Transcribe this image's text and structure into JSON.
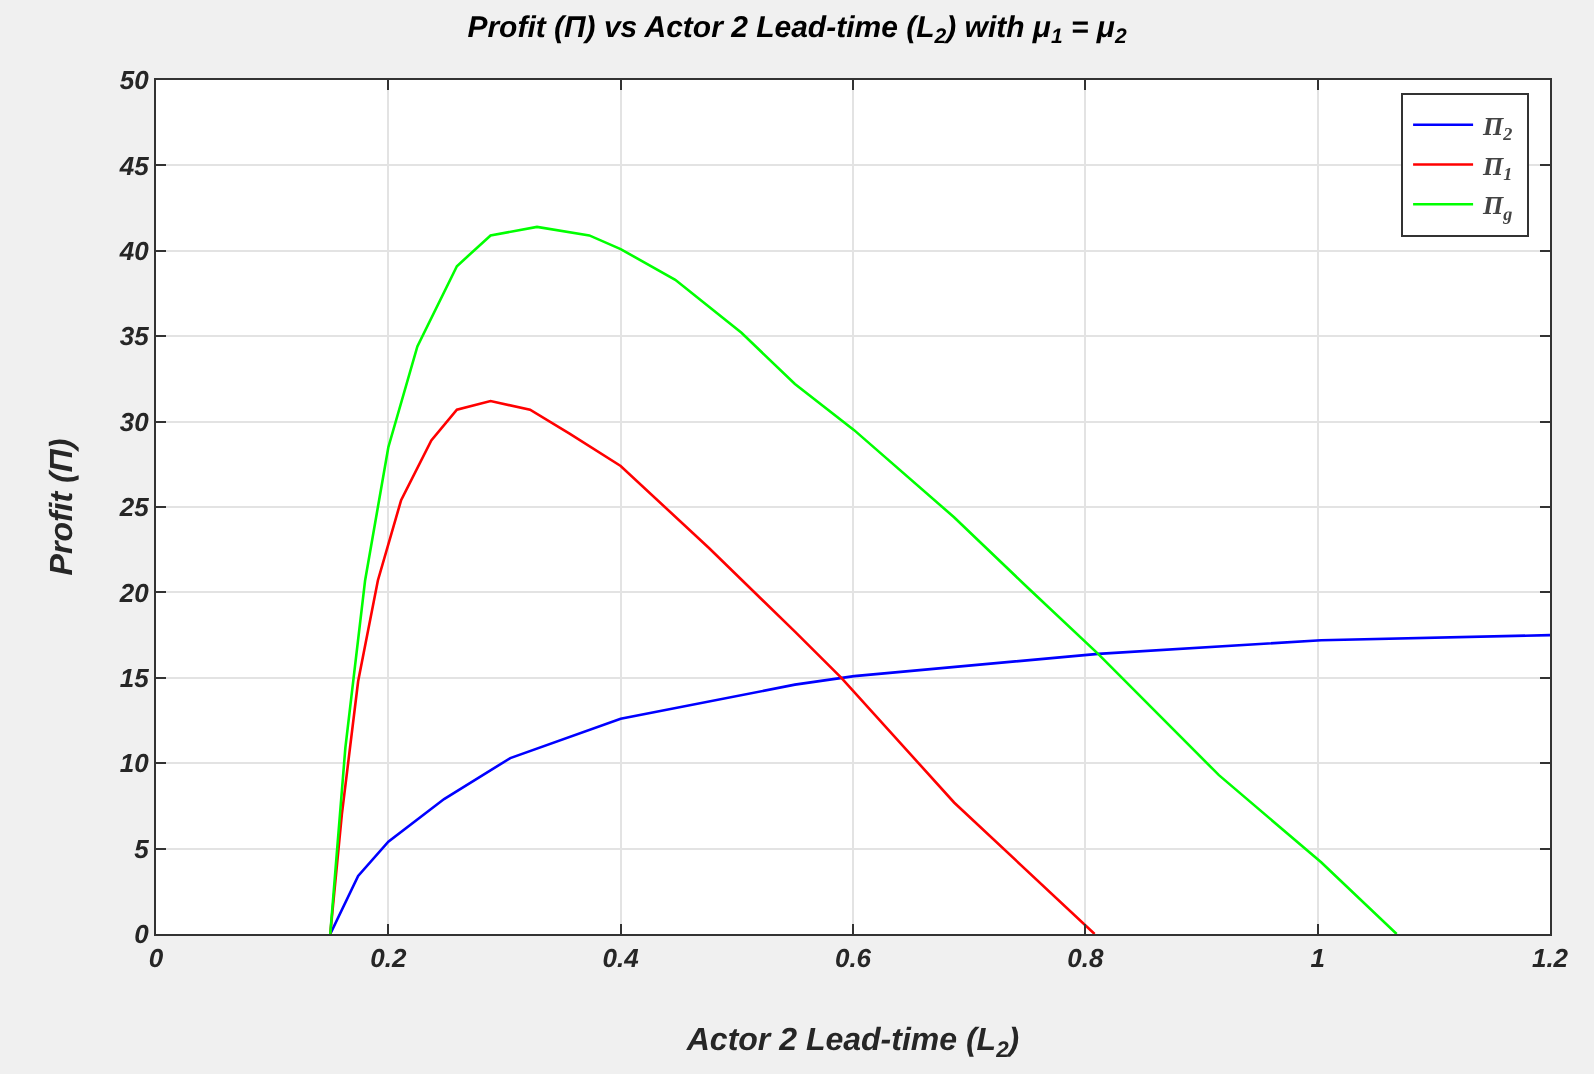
{
  "chart_data": {
    "type": "line",
    "title": "Profit (Π) vs Actor 2 Lead-time (L$_{2}$) with μ$_{1}$ = μ$_{2}$",
    "xlabel": "Actor 2 Lead-time (L$_{2}$)",
    "ylabel": "Profit (Π)",
    "xlim": [
      0,
      1.2
    ],
    "xticks": [
      0,
      0.2,
      0.4,
      0.6,
      0.8,
      1,
      1.2
    ],
    "ylim": [
      0,
      50
    ],
    "yticks": [
      0,
      5,
      10,
      15,
      20,
      25,
      30,
      35,
      40,
      45,
      50
    ],
    "grid": true,
    "legend": "top right",
    "marker": "none",
    "line_style": "solid",
    "series": [
      {
        "name": "Π$_{2}$",
        "color": "#0000ff",
        "x": [
          0.15,
          0.174,
          0.2,
          0.248,
          0.305,
          0.4,
          0.55,
          0.601,
          0.811,
          1.003,
          1.2
        ],
        "values": [
          0,
          3.4,
          5.4,
          7.9,
          10.3,
          12.6,
          14.6,
          15.1,
          16.4,
          17.2,
          17.5
        ]
      },
      {
        "name": "Π$_{1}$",
        "color": "#ff0000",
        "x": [
          0.15,
          0.16,
          0.174,
          0.191,
          0.211,
          0.237,
          0.259,
          0.288,
          0.322,
          0.356,
          0.4,
          0.476,
          0.55,
          0.59,
          0.687,
          0.808
        ],
        "values": [
          0,
          7,
          14.8,
          20.7,
          25.4,
          28.9,
          30.7,
          31.2,
          30.7,
          29.3,
          27.4,
          22.6,
          17.7,
          15,
          7.7,
          0
        ]
      },
      {
        "name": "Π$_{g}$",
        "color": "#00ff00",
        "x": [
          0.15,
          0.163,
          0.18,
          0.2,
          0.225,
          0.259,
          0.288,
          0.328,
          0.373,
          0.4,
          0.447,
          0.504,
          0.55,
          0.601,
          0.687,
          0.75,
          0.811,
          0.915,
          1.003,
          1.068
        ],
        "values": [
          0,
          10.9,
          20.7,
          28.5,
          34.4,
          39.1,
          40.9,
          41.4,
          40.9,
          40.1,
          38.3,
          35.2,
          32.2,
          29.5,
          24.4,
          20.3,
          16.4,
          9.3,
          4.2,
          0
        ]
      }
    ]
  }
}
